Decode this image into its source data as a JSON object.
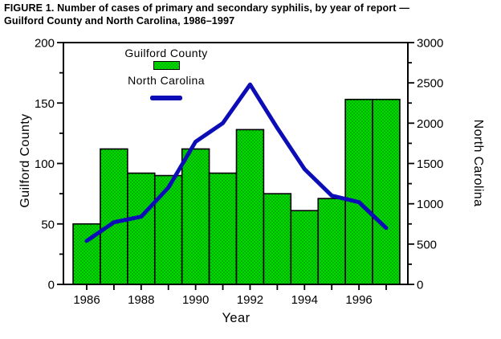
{
  "title": {
    "line1": "FIGURE 1. Number of cases of primary and secondary syphilis, by year of report —",
    "line2": "Guilford County and North Carolina, 1986–1997"
  },
  "legend": {
    "bar_label": "Guilford County",
    "line_label": "North Carolina"
  },
  "axes": {
    "left_title": "Guilford County",
    "right_title": "North Carolina",
    "x_title": "Year"
  },
  "colors": {
    "bar_fill": "#00dc00",
    "bar_dot": "#0a660a",
    "line": "#0d0db8",
    "axis": "#000000",
    "background": "#ffffff"
  },
  "chart_data": {
    "type": "bar+line combo",
    "title": "FIGURE 1. Number of cases of primary and secondary syphilis, by year of report — Guilford County and North Carolina, 1986–1997",
    "categories": [
      1986,
      1987,
      1988,
      1989,
      1990,
      1991,
      1992,
      1993,
      1994,
      1995,
      1996,
      1997
    ],
    "series": [
      {
        "name": "Guilford County",
        "type": "bar",
        "yaxis": "left",
        "values": [
          50,
          112,
          92,
          90,
          112,
          92,
          128,
          75,
          61,
          71,
          153,
          153
        ]
      },
      {
        "name": "North Carolina",
        "type": "line",
        "yaxis": "right",
        "values": [
          540,
          770,
          840,
          1200,
          1770,
          2000,
          2480,
          1940,
          1430,
          1100,
          1020,
          700
        ]
      }
    ],
    "xlabel": "Year",
    "left_axis": {
      "label": "Guilford County",
      "range": [
        0,
        200
      ],
      "major_ticks": [
        0,
        50,
        100,
        150,
        200
      ],
      "minor_tick_interval": 25
    },
    "right_axis": {
      "label": "North Carolina",
      "range": [
        0,
        3000
      ],
      "major_ticks": [
        0,
        500,
        1000,
        1500,
        2000,
        2500,
        3000
      ],
      "minor_tick_interval": 250
    },
    "x_tick_labels": [
      "1986",
      "1988",
      "1990",
      "1992",
      "1994",
      "1996"
    ],
    "grid": false,
    "legend_position": "top-inside-left"
  }
}
